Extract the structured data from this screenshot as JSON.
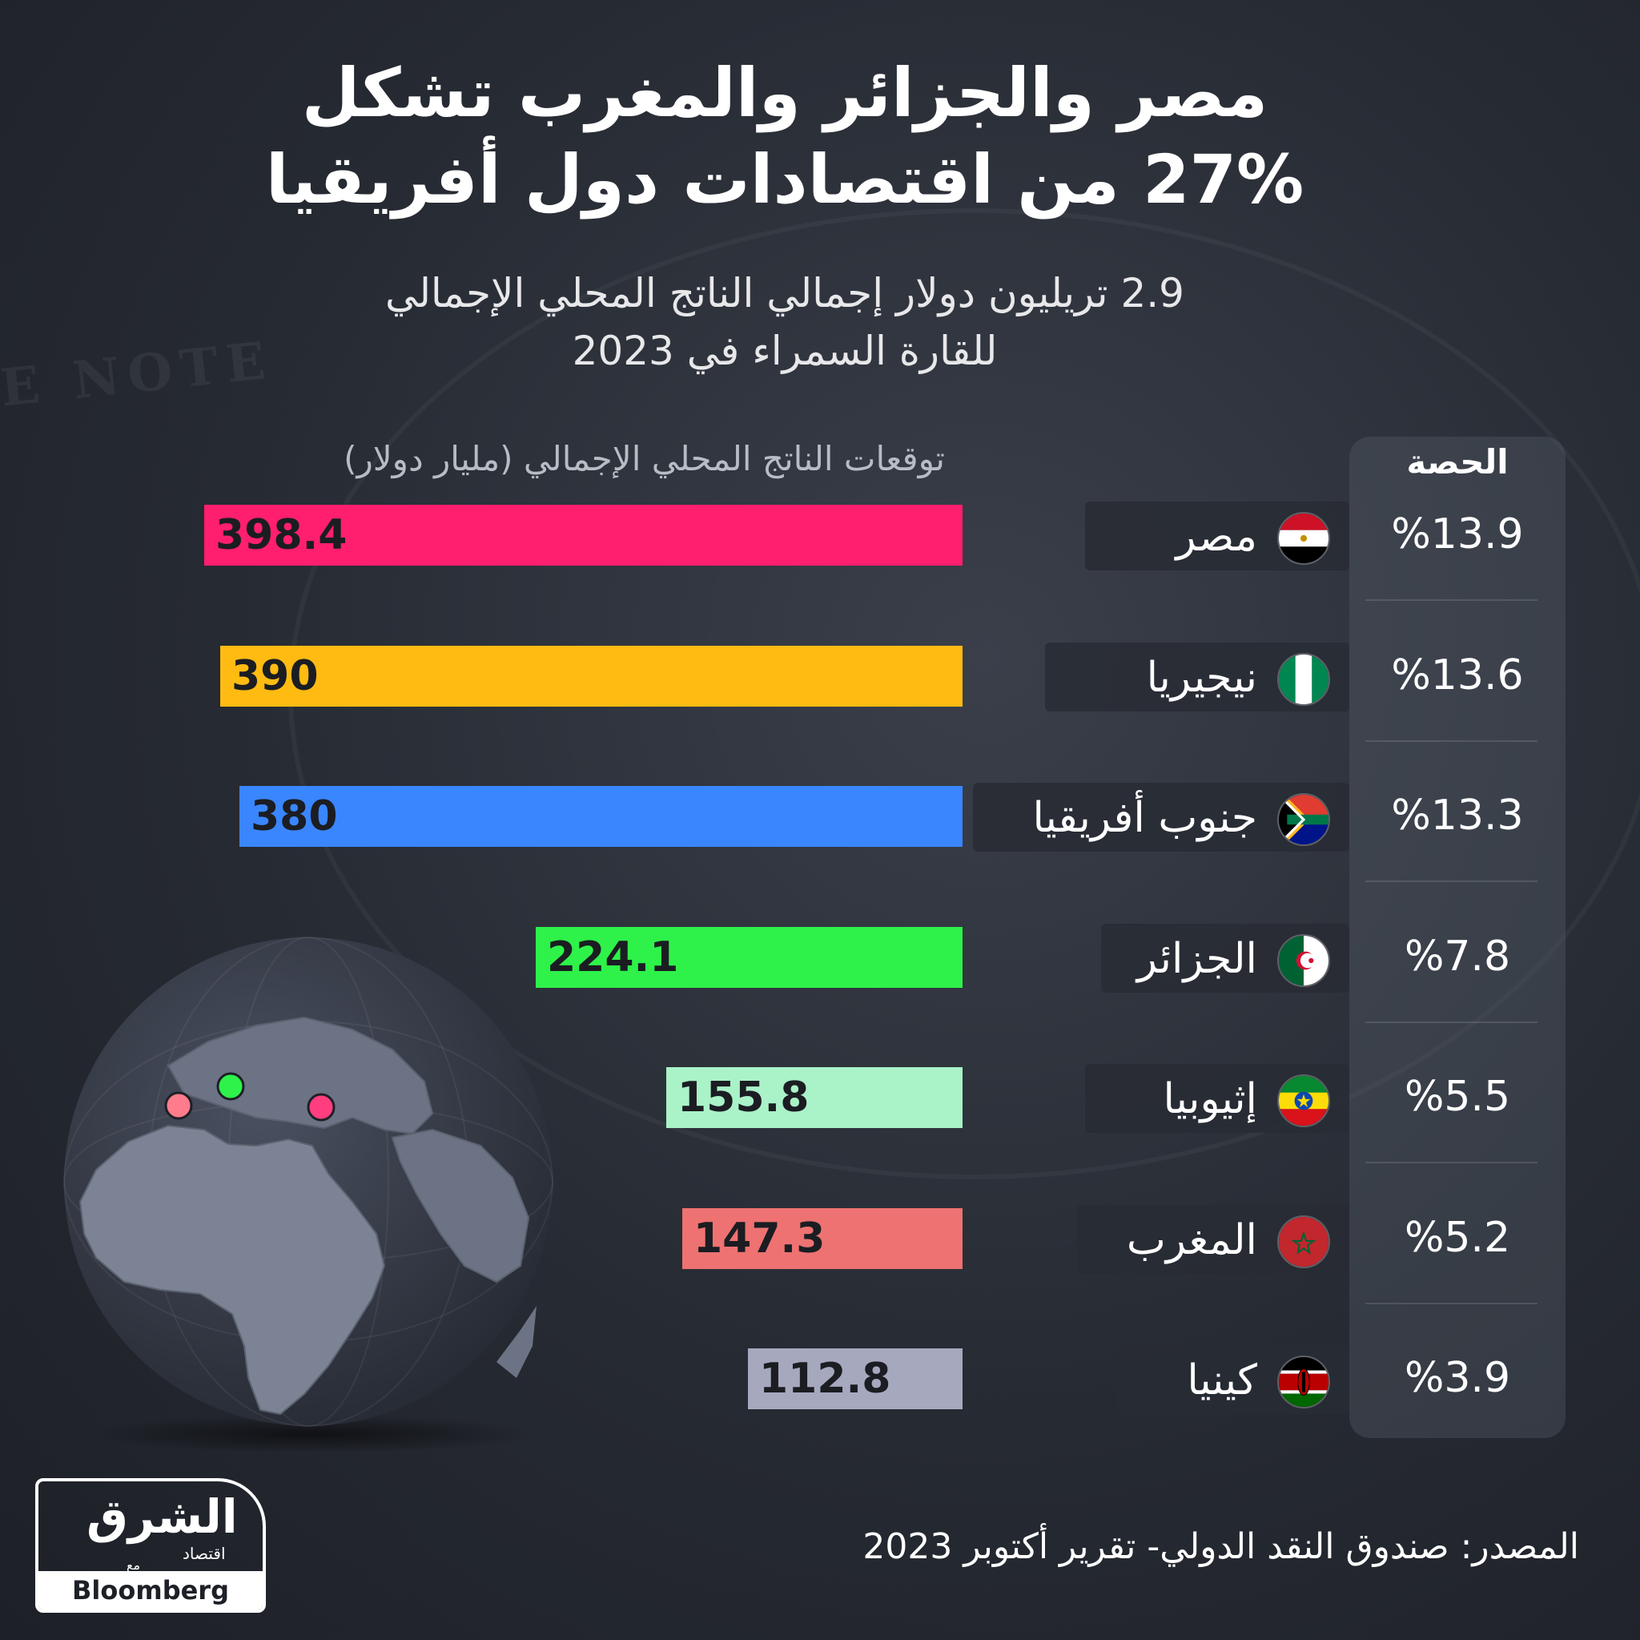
{
  "title": {
    "line1": "مصر والجزائر والمغرب تشكل",
    "line2": "27% من اقتصادات دول أفريقيا"
  },
  "subtitle": {
    "line1": "2.9 تريليون دولار إجمالي الناتج المحلي الإجمالي",
    "line2": "للقارة السمراء في 2023"
  },
  "background_text": "E NOTE",
  "share_header": "الحصة",
  "source": "المصدر: صندوق النقد الدولي- تقرير أكتوبر 2023",
  "logo": {
    "main": "الشرق",
    "sub": "اقتصاد",
    "with": "مع",
    "partner": "Bloomberg"
  },
  "colors": {
    "egypt": "#ff1f6e",
    "nigeria": "#ffbb12",
    "south_africa": "#3a86ff",
    "algeria": "#2ef24a",
    "ethiopia": "#aaf2c8",
    "morocco": "#ee7272",
    "kenya": "#a6a9be"
  },
  "chart_data": {
    "type": "bar",
    "orientation": "horizontal",
    "title": "مصر والجزائر والمغرب تشكل 27% من اقتصادات دول أفريقيا",
    "xlabel": "توقعات الناتج المحلي الإجمالي (مليار دولار)",
    "categories": [
      "مصر",
      "نيجيريا",
      "جنوب أفريقيا",
      "الجزائر",
      "إثيوبيا",
      "المغرب",
      "كينيا"
    ],
    "values": [
      398.4,
      390,
      380,
      224.1,
      155.8,
      147.3,
      112.8
    ],
    "value_labels": [
      "398.4",
      "390",
      "380",
      "224.1",
      "155.8",
      "147.3",
      "112.8"
    ],
    "shares": [
      "%13.9",
      "%13.6",
      "%13.3",
      "%7.8",
      "%5.5",
      "%5.2",
      "%3.9"
    ],
    "share_header": "الحصة",
    "flags": [
      "egypt-flag-icon",
      "nigeria-flag-icon",
      "south-africa-flag-icon",
      "algeria-flag-icon",
      "ethiopia-flag-icon",
      "morocco-flag-icon",
      "kenya-flag-icon"
    ],
    "xlim": [
      0,
      398.4
    ],
    "grid": false,
    "legend": "none"
  }
}
